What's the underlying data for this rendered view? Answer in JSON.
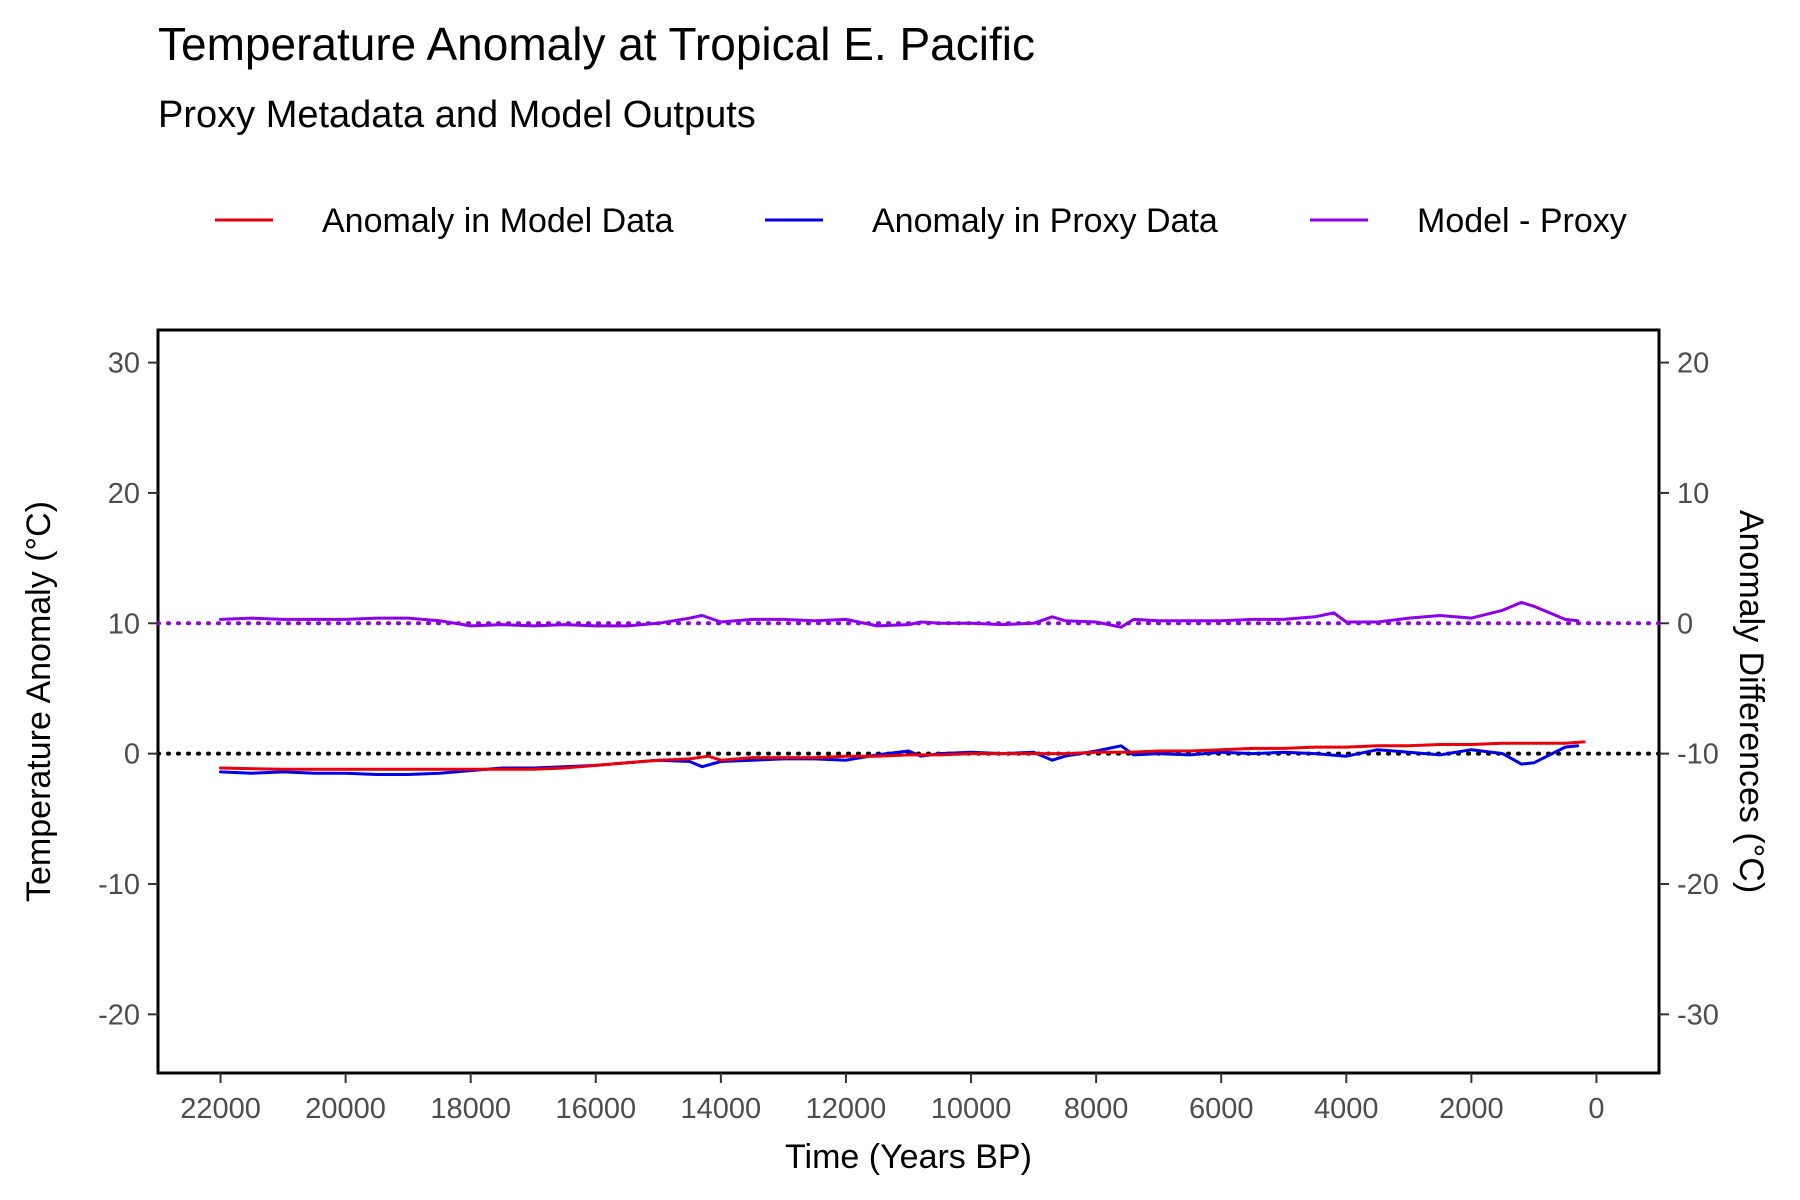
{
  "chart_data": {
    "type": "line",
    "title": "Temperature Anomaly at Tropical E. Pacific",
    "subtitle": "Proxy Metadata and Model Outputs",
    "xlabel": "Time (Years BP)",
    "ylabel": "Temperature Anomaly (°C)",
    "ylabel_right": "Anomaly Differences (°C)",
    "xlim": [
      23000,
      -1000
    ],
    "ylim": [
      -24.5,
      32.5
    ],
    "ylim_right": [
      -34.5,
      22.5
    ],
    "x_reversed": true,
    "x_ticks": [
      22000,
      20000,
      18000,
      16000,
      14000,
      12000,
      10000,
      8000,
      6000,
      4000,
      2000,
      0
    ],
    "x_tick_labels": [
      "22000",
      "20000",
      "18000",
      "16000",
      "14000",
      "12000",
      "10000",
      "8000",
      "6000",
      "4000",
      "2000",
      "0"
    ],
    "y_ticks": [
      30,
      20,
      10,
      0,
      -10,
      -20
    ],
    "y_tick_labels": [
      "30",
      "20",
      "10",
      "0",
      "-10",
      "-20"
    ],
    "y_ticks_right": [
      20,
      10,
      0,
      -10,
      -20,
      -30
    ],
    "y_tick_labels_right": [
      "20",
      "10",
      "0",
      "-10",
      "-20",
      "-30"
    ],
    "grid": false,
    "legend_position": "top",
    "reference_lines": [
      {
        "axis": "left",
        "y": 0,
        "color": "#000000",
        "style": "dotted"
      },
      {
        "axis": "left",
        "y": 10,
        "color": "#8B00E8",
        "style": "dotted"
      }
    ],
    "series": [
      {
        "name": "Anomaly in Model Data",
        "color": "#E8000B",
        "axis": "left",
        "x": [
          22000,
          21000,
          20000,
          19000,
          18000,
          17000,
          16500,
          16000,
          15500,
          15000,
          14500,
          14200,
          14000,
          13500,
          13000,
          12500,
          12000,
          11500,
          11000,
          10500,
          10000,
          9500,
          9000,
          8500,
          8000,
          7500,
          7000,
          6500,
          6000,
          5500,
          5000,
          4500,
          4000,
          3500,
          3000,
          2500,
          2000,
          1500,
          1000,
          500,
          200
        ],
        "y": [
          -1.1,
          -1.2,
          -1.2,
          -1.2,
          -1.2,
          -1.2,
          -1.1,
          -0.9,
          -0.7,
          -0.5,
          -0.4,
          -0.2,
          -0.5,
          -0.3,
          -0.3,
          -0.3,
          -0.2,
          -0.2,
          -0.1,
          -0.1,
          0.0,
          0.0,
          0.0,
          0.0,
          0.1,
          0.1,
          0.2,
          0.2,
          0.3,
          0.4,
          0.4,
          0.5,
          0.5,
          0.6,
          0.6,
          0.7,
          0.7,
          0.8,
          0.8,
          0.8,
          0.9
        ]
      },
      {
        "name": "Anomaly in Proxy Data",
        "color": "#0000E8",
        "axis": "left",
        "x": [
          22000,
          21500,
          21000,
          20500,
          20000,
          19500,
          19000,
          18500,
          18000,
          17500,
          17000,
          16500,
          16000,
          15500,
          15000,
          14500,
          14300,
          14000,
          13500,
          13000,
          12500,
          12000,
          11500,
          11000,
          10800,
          10500,
          10000,
          9500,
          9000,
          8700,
          8500,
          8000,
          7600,
          7400,
          7000,
          6500,
          6000,
          5500,
          5000,
          4500,
          4000,
          3500,
          3000,
          2500,
          2000,
          1500,
          1200,
          1000,
          500,
          300
        ],
        "y": [
          -1.4,
          -1.5,
          -1.4,
          -1.5,
          -1.5,
          -1.6,
          -1.6,
          -1.5,
          -1.3,
          -1.1,
          -1.1,
          -1.0,
          -0.9,
          -0.7,
          -0.5,
          -0.6,
          -1.0,
          -0.6,
          -0.5,
          -0.4,
          -0.4,
          -0.5,
          -0.1,
          0.2,
          -0.2,
          0.0,
          0.1,
          0.0,
          0.1,
          -0.5,
          -0.2,
          0.2,
          0.6,
          -0.1,
          0.0,
          -0.1,
          0.1,
          0.0,
          0.1,
          0.0,
          -0.2,
          0.3,
          0.1,
          -0.1,
          0.3,
          0.0,
          -0.8,
          -0.7,
          0.5,
          0.6
        ]
      },
      {
        "name": "Model - Proxy",
        "color": "#8B00E8",
        "axis": "right",
        "x": [
          22000,
          21500,
          21000,
          20500,
          20000,
          19500,
          19000,
          18500,
          18000,
          17500,
          17000,
          16500,
          16000,
          15500,
          15000,
          14500,
          14300,
          14000,
          13500,
          13000,
          12500,
          12000,
          11500,
          11000,
          10800,
          10500,
          10000,
          9500,
          9000,
          8700,
          8500,
          8000,
          7600,
          7400,
          7000,
          6500,
          6000,
          5500,
          5000,
          4500,
          4200,
          4000,
          3500,
          3000,
          2500,
          2000,
          1500,
          1200,
          1000,
          500,
          300
        ],
        "y": [
          0.3,
          0.4,
          0.3,
          0.3,
          0.3,
          0.4,
          0.4,
          0.2,
          -0.2,
          -0.1,
          -0.2,
          -0.1,
          -0.2,
          -0.2,
          0.0,
          0.4,
          0.6,
          0.1,
          0.3,
          0.3,
          0.2,
          0.3,
          -0.2,
          -0.1,
          0.1,
          0.0,
          0.0,
          -0.1,
          0.0,
          0.5,
          0.2,
          0.1,
          -0.3,
          0.3,
          0.2,
          0.2,
          0.2,
          0.3,
          0.3,
          0.5,
          0.8,
          0.1,
          0.1,
          0.4,
          0.6,
          0.4,
          1.0,
          1.6,
          1.3,
          0.3,
          0.2
        ]
      }
    ]
  }
}
